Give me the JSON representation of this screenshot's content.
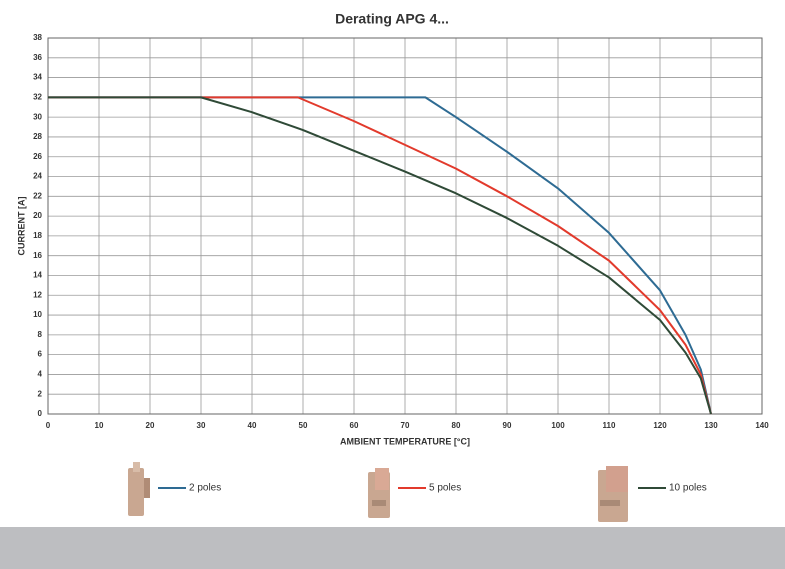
{
  "chart_data": {
    "type": "line",
    "title": "Derating APG 4...",
    "x_label": "AMBIENT TEMPERATURE [°C]",
    "y_label": "CURRENT [A]",
    "xlim": [
      0,
      140
    ],
    "xticks": [
      0,
      10,
      20,
      30,
      40,
      50,
      60,
      70,
      80,
      90,
      100,
      110,
      120,
      130,
      140
    ],
    "ylim": [
      0,
      38
    ],
    "yticks": [
      0,
      2,
      4,
      6,
      8,
      10,
      12,
      14,
      16,
      18,
      20,
      22,
      24,
      26,
      28,
      30,
      32,
      34,
      36,
      38
    ],
    "grid": true,
    "series": [
      {
        "name": "2 poles",
        "color": "#2e6b93",
        "x": [
          0,
          74,
          80,
          90,
          100,
          110,
          120,
          125,
          128,
          130
        ],
        "values": [
          32,
          32,
          30,
          26.5,
          22.8,
          18.3,
          12.5,
          8,
          4.5,
          0
        ]
      },
      {
        "name": "5 poles",
        "color": "#e23a2c",
        "x": [
          0,
          49,
          60,
          70,
          80,
          90,
          100,
          110,
          120,
          125,
          128,
          130
        ],
        "values": [
          32,
          32,
          29.6,
          27.2,
          24.8,
          22,
          19,
          15.5,
          10.5,
          7,
          4,
          0
        ]
      },
      {
        "name": "10 poles",
        "color": "#2f4a37",
        "x": [
          0,
          30,
          40,
          50,
          60,
          70,
          80,
          90,
          100,
          110,
          120,
          125,
          128,
          130
        ],
        "values": [
          32,
          32,
          30.5,
          28.7,
          26.6,
          24.5,
          22.3,
          19.8,
          17,
          13.8,
          9.5,
          6.2,
          3.6,
          0
        ]
      }
    ]
  }
}
